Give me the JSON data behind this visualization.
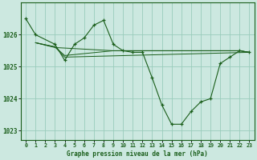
{
  "title": "Graphe pression niveau de la mer (hPa)",
  "background_color": "#cce8e0",
  "grid_color": "#99ccbb",
  "line_color": "#1a5e1a",
  "xlim": [
    -0.5,
    23.5
  ],
  "ylim": [
    1022.7,
    1027.0
  ],
  "yticks": [
    1023,
    1024,
    1025,
    1026
  ],
  "xtick_labels": [
    "0",
    "1",
    "2",
    "3",
    "4",
    "5",
    "6",
    "7",
    "8",
    "9",
    "10",
    "11",
    "12",
    "13",
    "14",
    "15",
    "16",
    "17",
    "18",
    "19",
    "20",
    "21",
    "22",
    "23"
  ],
  "main_series": {
    "x": [
      0,
      1,
      3,
      4,
      5,
      6,
      7,
      8,
      9,
      10,
      11,
      12,
      13,
      14,
      15,
      16,
      17,
      18,
      19,
      20,
      21,
      22,
      23
    ],
    "y": [
      1026.5,
      1026.0,
      1025.7,
      1025.2,
      1025.7,
      1025.9,
      1026.3,
      1026.45,
      1025.7,
      1025.5,
      1025.45,
      1025.45,
      1024.65,
      1023.8,
      1023.2,
      1023.2,
      1023.6,
      1023.9,
      1024.0,
      1025.1,
      1025.3,
      1025.5,
      1025.45
    ]
  },
  "ref_lines": [
    {
      "x": [
        1,
        3,
        9,
        10,
        11,
        12,
        13,
        14,
        15,
        16,
        17,
        18,
        19,
        20,
        21,
        22,
        23
      ],
      "y": [
        1025.75,
        1025.6,
        1025.5,
        1025.5,
        1025.5,
        1025.5,
        1025.5,
        1025.5,
        1025.5,
        1025.5,
        1025.5,
        1025.5,
        1025.5,
        1025.5,
        1025.5,
        1025.5,
        1025.45
      ]
    },
    {
      "x": [
        1,
        3,
        4,
        5,
        9,
        10,
        11,
        12,
        13,
        14,
        15,
        16,
        17,
        18,
        19,
        20,
        21,
        22,
        23
      ],
      "y": [
        1025.75,
        1025.62,
        1025.35,
        1025.38,
        1025.5,
        1025.5,
        1025.5,
        1025.5,
        1025.5,
        1025.5,
        1025.5,
        1025.5,
        1025.5,
        1025.5,
        1025.5,
        1025.5,
        1025.5,
        1025.5,
        1025.45
      ]
    },
    {
      "x": [
        1,
        3,
        4,
        23
      ],
      "y": [
        1025.75,
        1025.62,
        1025.3,
        1025.45
      ]
    }
  ]
}
